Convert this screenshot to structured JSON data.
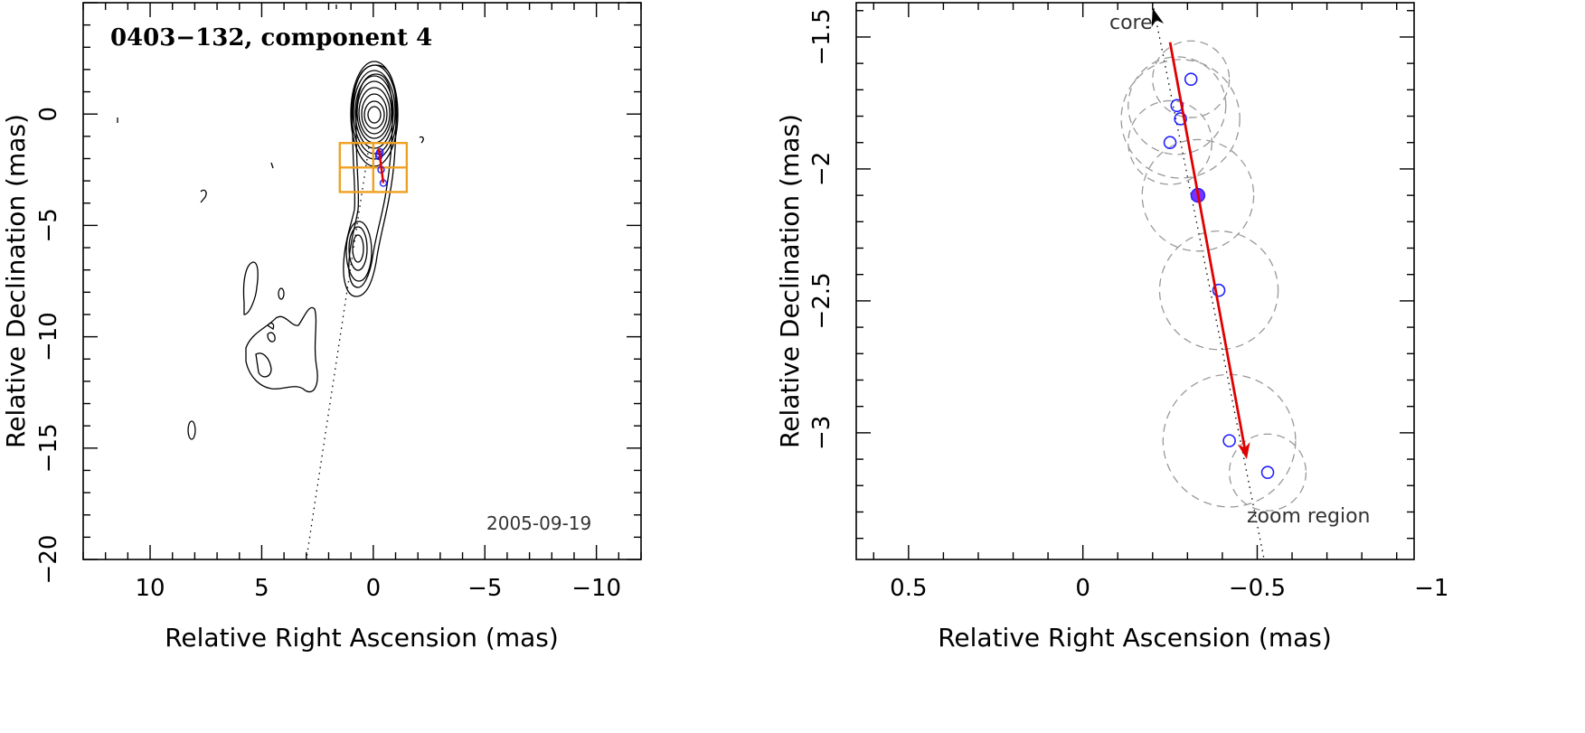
{
  "chart_data": [
    {
      "type": "contour-map",
      "title": "0403−132, component 4",
      "date_label": "2005-09-19",
      "xlabel": "Relative Right Ascension (mas)",
      "ylabel": "Relative Declination (mas)",
      "xlim": [
        13,
        -12
      ],
      "ylim": [
        -20,
        5
      ],
      "xticks": [
        10,
        5,
        0,
        -5,
        -10
      ],
      "xtick_labels": [
        "10",
        "5",
        "0",
        "−5",
        "−10"
      ],
      "yticks": [
        0,
        -5,
        -10,
        -15,
        -20
      ],
      "ytick_labels": [
        "0",
        "−5",
        "−10",
        "−15",
        "−20"
      ],
      "trajectory": [
        [
          0.2,
          -1.5
        ],
        [
          3.0,
          -20.0
        ]
      ],
      "component_positions": [
        [
          -0.3,
          -1.7
        ],
        [
          -0.25,
          -1.8
        ],
        [
          -0.25,
          -1.9
        ],
        [
          -0.35,
          -2.5
        ],
        [
          -0.45,
          -3.1
        ]
      ],
      "arrow": {
        "from": [
          -0.25,
          -1.55
        ],
        "to": [
          -0.45,
          -3.1
        ]
      },
      "zoom_box": {
        "x": [
          1.5,
          -1.5
        ],
        "y": [
          -1.3,
          -3.5
        ]
      }
    },
    {
      "type": "scatter",
      "xlabel": "Relative Right Ascension (mas)",
      "ylabel": "Relative Declination (mas)",
      "xlim": [
        0.65,
        -0.95
      ],
      "ylim": [
        -3.48,
        -1.37
      ],
      "xticks": [
        0.5,
        0,
        -0.5,
        -1
      ],
      "xtick_labels": [
        "0.5",
        "0",
        "−0.5",
        "−1"
      ],
      "yticks": [
        -1.5,
        -2,
        -2.5,
        -3
      ],
      "ytick_labels": [
        "−1.5",
        "−2",
        "−2.5",
        "−3"
      ],
      "core_label": "core",
      "zoom_label": "zoom region",
      "points": [
        {
          "x": -0.31,
          "y": -1.66,
          "r": 0.11
        },
        {
          "x": -0.27,
          "y": -1.76,
          "r": 0.14
        },
        {
          "x": -0.28,
          "y": -1.81,
          "r": 0.17
        },
        {
          "x": -0.25,
          "y": -1.9,
          "r": 0.12
        },
        {
          "x": -0.39,
          "y": -2.46,
          "r": 0.17
        },
        {
          "x": -0.42,
          "y": -3.03,
          "r": 0.19
        },
        {
          "x": -0.53,
          "y": -3.15,
          "r": 0.11
        }
      ],
      "reference_point": {
        "x": -0.33,
        "y": -2.1,
        "r": 0.16
      },
      "trajectory": [
        [
          -0.2,
          -1.37
        ],
        [
          -0.52,
          -3.48
        ]
      ],
      "arrow": {
        "from": [
          -0.25,
          -1.52
        ],
        "to": [
          -0.47,
          -3.1
        ]
      },
      "core_arrow": {
        "from": [
          -0.22,
          -1.48
        ],
        "to": [
          -0.2,
          -1.39
        ]
      }
    }
  ]
}
